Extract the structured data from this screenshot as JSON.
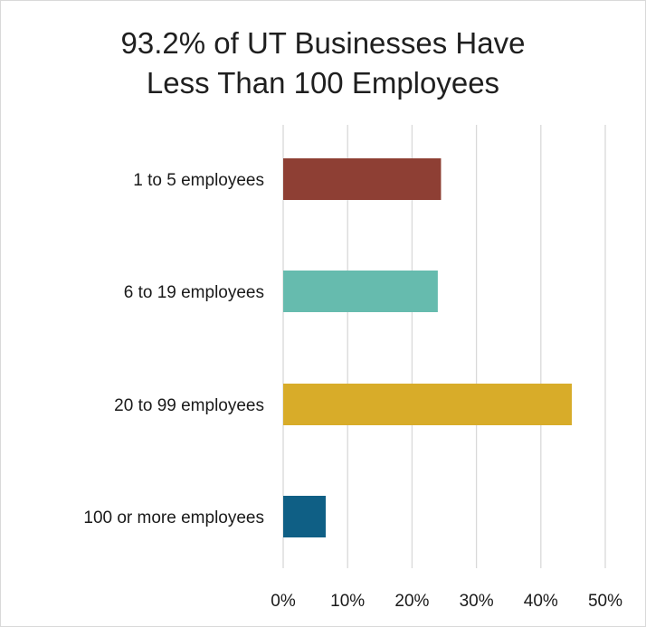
{
  "chart_data": {
    "type": "bar",
    "orientation": "horizontal",
    "title_lines": [
      "93.2% of UT Businesses Have",
      "Less Than 100 Employees"
    ],
    "categories": [
      "1 to 5 employees",
      "6 to 19 employees",
      "20 to 99 employees",
      "100 or more employees"
    ],
    "values": [
      24.5,
      24.0,
      44.8,
      6.6
    ],
    "colors": [
      "#8e3f34",
      "#66bbae",
      "#d8ac29",
      "#0f5f85"
    ],
    "xlim": [
      0,
      50
    ],
    "x_ticks": [
      0,
      10,
      20,
      30,
      40,
      50
    ],
    "x_tick_labels": [
      "0%",
      "10%",
      "20%",
      "30%",
      "40%",
      "50%"
    ],
    "grid": "vertical",
    "legend": "none"
  }
}
